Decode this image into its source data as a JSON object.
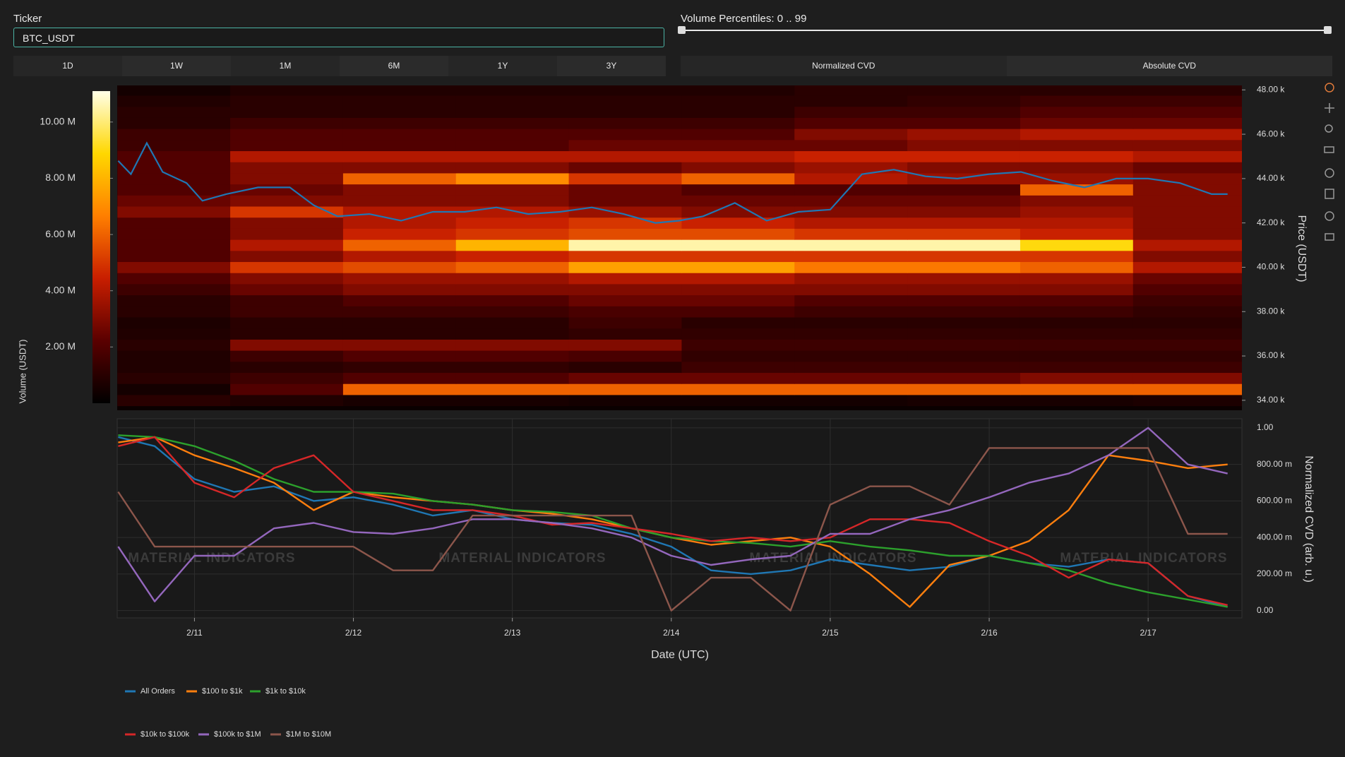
{
  "ticker": {
    "label": "Ticker",
    "value": "BTC_USDT"
  },
  "range_buttons": [
    "1D",
    "1W",
    "1M",
    "6M",
    "1Y",
    "3Y"
  ],
  "slider": {
    "label": "Volume Percentiles: 0 .. 99"
  },
  "mode_buttons": [
    "Normalized CVD",
    "Absolute CVD"
  ],
  "watermark": "MATERIAL INDICATORS",
  "chart_data": [
    {
      "type": "heatmap",
      "x": [
        10.87,
        11.58,
        12.29,
        13.0,
        13.71,
        14.42,
        15.13,
        15.84,
        16.55,
        17.26
      ],
      "y": [
        34.0,
        34.5,
        35.0,
        35.5,
        36.0,
        36.5,
        37.0,
        37.5,
        38.0,
        38.5,
        39.0,
        39.5,
        40.0,
        40.5,
        41.0,
        41.5,
        42.0,
        42.5,
        43.0,
        43.5,
        44.0,
        44.5,
        45.0,
        45.5,
        46.0,
        46.5,
        47.0,
        47.5,
        48.0
      ],
      "z": [
        [
          1,
          0.8,
          0.6,
          0.6,
          0.5,
          0.5,
          0.5,
          0.6,
          0.6,
          0.7
        ],
        [
          0.5,
          2,
          6,
          6,
          6,
          6,
          6,
          6,
          6,
          6
        ],
        [
          1,
          1.5,
          2,
          2,
          2.5,
          2.5,
          2.5,
          2.5,
          3,
          3
        ],
        [
          0.8,
          1,
          1.2,
          1.2,
          1,
          1.5,
          1.5,
          1.5,
          1.5,
          1.5
        ],
        [
          0.8,
          1.5,
          2,
          2,
          1.8,
          1.2,
          1.2,
          1.2,
          1.2,
          1.2
        ],
        [
          1,
          3,
          3,
          3,
          3,
          1.5,
          1.5,
          1.5,
          1.5,
          1.5
        ],
        [
          0.8,
          1,
          1,
          1,
          1.2,
          1.2,
          1.2,
          1.2,
          1.2,
          1.2
        ],
        [
          0.7,
          1,
          1,
          1,
          1.5,
          1,
          1,
          1,
          1,
          1
        ],
        [
          1,
          1.5,
          1.5,
          1.5,
          1.8,
          1.8,
          1.5,
          1.5,
          1.5,
          1.2
        ],
        [
          1,
          1.5,
          2,
          2,
          2.5,
          2.5,
          2,
          2,
          2,
          1.5
        ],
        [
          1.5,
          2.5,
          3,
          3,
          3,
          3,
          3,
          3,
          3,
          2
        ],
        [
          2,
          3,
          3.5,
          3.5,
          4,
          4,
          3.5,
          3.5,
          3.5,
          2.5
        ],
        [
          3,
          5,
          5.5,
          6,
          7.5,
          7.5,
          6.5,
          6.5,
          6,
          4
        ],
        [
          2,
          3,
          4,
          4.5,
          5,
          5,
          5,
          5,
          5,
          3
        ],
        [
          2,
          4,
          6,
          8,
          10.5,
          10.5,
          10.5,
          10.5,
          9,
          4
        ],
        [
          2,
          3,
          4.5,
          5,
          5.5,
          5.5,
          5,
          5,
          4.5,
          3
        ],
        [
          2,
          3,
          4,
          4.5,
          5,
          4.5,
          4,
          4,
          4,
          3
        ],
        [
          3,
          5,
          4,
          4,
          3.5,
          3,
          3,
          3,
          3.5,
          3
        ],
        [
          2.5,
          3,
          3,
          3,
          2.5,
          2.5,
          2.5,
          2.5,
          3,
          3
        ],
        [
          2,
          2.5,
          3,
          3,
          2.5,
          2,
          2,
          2,
          6,
          3
        ],
        [
          2,
          3,
          6,
          7,
          5,
          6,
          4,
          3.5,
          3.5,
          3
        ],
        [
          2,
          3,
          3,
          3,
          2.5,
          3,
          3.5,
          3,
          3,
          2.5
        ],
        [
          2,
          4,
          4,
          4,
          4,
          4,
          4.5,
          4.5,
          4.5,
          4
        ],
        [
          1.5,
          2,
          2,
          2,
          2.5,
          2.5,
          2.5,
          3,
          3,
          3
        ],
        [
          1.5,
          2,
          2,
          2,
          2,
          2,
          3,
          3.5,
          4,
          4
        ],
        [
          1,
          1.5,
          1.5,
          1.5,
          1.5,
          1.5,
          2,
          2,
          2.5,
          2.5
        ],
        [
          1,
          1,
          1,
          1,
          1,
          1,
          1.5,
          1.5,
          2,
          2
        ],
        [
          0.8,
          1,
          1,
          1,
          1,
          1,
          1,
          1.2,
          1.5,
          1.5
        ],
        [
          0.5,
          0.8,
          0.8,
          0.8,
          0.8,
          0.8,
          1,
          1,
          1,
          1
        ]
      ],
      "colorscale": [
        "#000000",
        "#5a0000",
        "#c81e00",
        "#ff7f00",
        "#ffd700",
        "#ffffe8"
      ],
      "zlim": [
        0,
        11.1
      ],
      "zticks": [
        {
          "value": 2,
          "label": "2.00 M"
        },
        {
          "value": 4,
          "label": "4.00 M"
        },
        {
          "value": 6,
          "label": "6.00 M"
        },
        {
          "value": 8,
          "label": "8.00 M"
        },
        {
          "value": 10,
          "label": "10.00 M"
        }
      ],
      "colorbar_title": "Volume (USDT)",
      "xlim": [
        10.514,
        17.59
      ],
      "ylim": [
        33.55,
        48.2
      ],
      "yticks": [
        {
          "value": 34,
          "label": "34.00 k"
        },
        {
          "value": 36,
          "label": "36.00 k"
        },
        {
          "value": 38,
          "label": "38.00 k"
        },
        {
          "value": 40,
          "label": "40.00 k"
        },
        {
          "value": 42,
          "label": "42.00 k"
        },
        {
          "value": 44,
          "label": "44.00 k"
        },
        {
          "value": 46,
          "label": "46.00 k"
        },
        {
          "value": 48,
          "label": "48.00 k"
        }
      ],
      "y_title": "Price (USDT)",
      "line": {
        "color": "#1f77b4",
        "x": [
          10.52,
          10.6,
          10.7,
          10.8,
          10.95,
          11.05,
          11.2,
          11.4,
          11.6,
          11.75,
          11.9,
          12.1,
          12.3,
          12.5,
          12.7,
          12.9,
          13.1,
          13.3,
          13.5,
          13.7,
          13.9,
          14.05,
          14.2,
          14.4,
          14.6,
          14.8,
          15.0,
          15.2,
          15.4,
          15.6,
          15.8,
          16.0,
          16.2,
          16.4,
          16.6,
          16.8,
          17.0,
          17.2,
          17.4,
          17.5
        ],
        "values": [
          44.8,
          44.2,
          45.6,
          44.3,
          43.8,
          43.0,
          43.3,
          43.6,
          43.6,
          42.8,
          42.3,
          42.4,
          42.1,
          42.5,
          42.5,
          42.7,
          42.4,
          42.5,
          42.7,
          42.4,
          42.0,
          42.1,
          42.3,
          42.9,
          42.1,
          42.5,
          42.6,
          44.2,
          44.4,
          44.1,
          44.0,
          44.2,
          44.3,
          43.9,
          43.6,
          44.0,
          44.0,
          43.8,
          43.3,
          43.3
        ]
      }
    },
    {
      "type": "line",
      "x": [
        10.52,
        10.75,
        11.0,
        11.25,
        11.5,
        11.75,
        12.0,
        12.25,
        12.5,
        12.75,
        13.0,
        13.25,
        13.5,
        13.75,
        14.0,
        14.25,
        14.5,
        14.75,
        15.0,
        15.25,
        15.5,
        15.75,
        16.0,
        16.25,
        16.5,
        16.75,
        17.0,
        17.25,
        17.5
      ],
      "series": [
        {
          "name": "All Orders",
          "color": "#1f77b4",
          "values": [
            0.95,
            0.9,
            0.72,
            0.65,
            0.68,
            0.6,
            0.62,
            0.58,
            0.52,
            0.55,
            0.5,
            0.48,
            0.47,
            0.42,
            0.35,
            0.22,
            0.2,
            0.22,
            0.28,
            0.25,
            0.22,
            0.24,
            0.3,
            0.26,
            0.24,
            0.28,
            0.26,
            0.08,
            0.02
          ]
        },
        {
          "name": "$100 to $1k",
          "color": "#ff7f0e",
          "values": [
            0.92,
            0.95,
            0.85,
            0.78,
            0.7,
            0.55,
            0.65,
            0.62,
            0.6,
            0.58,
            0.55,
            0.53,
            0.5,
            0.45,
            0.4,
            0.36,
            0.38,
            0.4,
            0.35,
            0.2,
            0.02,
            0.25,
            0.3,
            0.38,
            0.55,
            0.85,
            0.82,
            0.78,
            0.8
          ]
        },
        {
          "name": "$1k to $10k",
          "color": "#2ca02c",
          "values": [
            0.96,
            0.95,
            0.9,
            0.82,
            0.72,
            0.65,
            0.65,
            0.64,
            0.6,
            0.58,
            0.55,
            0.54,
            0.52,
            0.45,
            0.4,
            0.38,
            0.37,
            0.35,
            0.38,
            0.35,
            0.33,
            0.3,
            0.3,
            0.26,
            0.22,
            0.15,
            0.1,
            0.06,
            0.02
          ]
        },
        {
          "name": "$10k to $100k",
          "color": "#d62728",
          "values": [
            0.9,
            0.95,
            0.7,
            0.62,
            0.78,
            0.85,
            0.65,
            0.6,
            0.55,
            0.55,
            0.52,
            0.47,
            0.48,
            0.45,
            0.42,
            0.38,
            0.4,
            0.38,
            0.4,
            0.5,
            0.5,
            0.48,
            0.38,
            0.3,
            0.18,
            0.28,
            0.26,
            0.08,
            0.03
          ]
        },
        {
          "name": "$100k to $1M",
          "color": "#9467bd",
          "values": [
            0.35,
            0.05,
            0.3,
            0.3,
            0.45,
            0.48,
            0.43,
            0.42,
            0.45,
            0.5,
            0.5,
            0.48,
            0.45,
            0.4,
            0.3,
            0.25,
            0.28,
            0.3,
            0.42,
            0.42,
            0.5,
            0.55,
            0.62,
            0.7,
            0.75,
            0.85,
            1.0,
            0.8,
            0.75
          ]
        },
        {
          "name": "$1M to $10M",
          "color": "#8c564b",
          "values": [
            0.65,
            0.35,
            0.35,
            0.35,
            0.35,
            0.35,
            0.35,
            0.22,
            0.22,
            0.52,
            0.52,
            0.52,
            0.52,
            0.52,
            0.0,
            0.18,
            0.18,
            0.0,
            0.58,
            0.68,
            0.68,
            0.58,
            0.89,
            0.89,
            0.89,
            0.89,
            0.89,
            0.42,
            0.42
          ]
        }
      ],
      "xlim": [
        10.514,
        17.59
      ],
      "xticks": [
        {
          "value": 11,
          "label": "2/11"
        },
        {
          "value": 12,
          "label": "2/12"
        },
        {
          "value": 13,
          "label": "2/13"
        },
        {
          "value": 14,
          "label": "2/14"
        },
        {
          "value": 15,
          "label": "2/15"
        },
        {
          "value": 16,
          "label": "2/16"
        },
        {
          "value": 17,
          "label": "2/17"
        }
      ],
      "ylim": [
        -0.04,
        1.05
      ],
      "yticks": [
        {
          "value": 0,
          "label": "0.00"
        },
        {
          "value": 0.2,
          "label": "200.00 m"
        },
        {
          "value": 0.4,
          "label": "400.00 m"
        },
        {
          "value": 0.6,
          "label": "600.00 m"
        },
        {
          "value": 0.8,
          "label": "800.00 m"
        },
        {
          "value": 1,
          "label": "1.00"
        }
      ],
      "x_title": "Date (UTC)",
      "y_title": "Normalized CVD (arb. u.)",
      "grid": true
    }
  ]
}
